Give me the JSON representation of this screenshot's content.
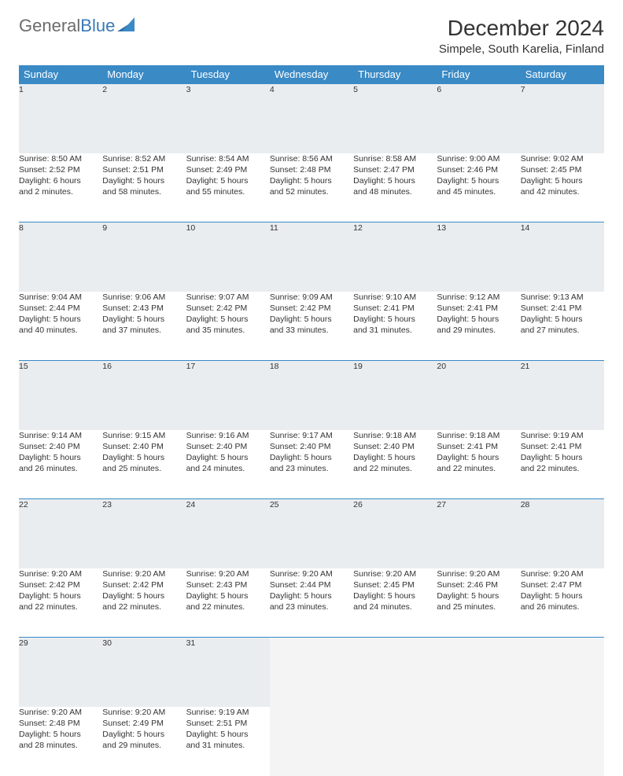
{
  "logo": {
    "part1": "General",
    "part2": "Blue"
  },
  "header": {
    "month_title": "December 2024",
    "location": "Simpele, South Karelia, Finland"
  },
  "colors": {
    "header_bg": "#3a8ac6",
    "header_text": "#ffffff",
    "row_divider": "#3a8ac6",
    "daynum_bg": "#e9edf0",
    "body_text": "#333333",
    "logo_gray": "#6c6c6c",
    "logo_blue": "#3a7ab8"
  },
  "typography": {
    "title_fontsize": 28,
    "location_fontsize": 15,
    "th_fontsize": 13,
    "cell_fontsize": 10.5
  },
  "calendar": {
    "type": "calendar-table",
    "columns": [
      "Sunday",
      "Monday",
      "Tuesday",
      "Wednesday",
      "Thursday",
      "Friday",
      "Saturday"
    ],
    "weeks": [
      [
        {
          "day": "1",
          "sunrise": "Sunrise: 8:50 AM",
          "sunset": "Sunset: 2:52 PM",
          "daylight1": "Daylight: 6 hours",
          "daylight2": "and 2 minutes."
        },
        {
          "day": "2",
          "sunrise": "Sunrise: 8:52 AM",
          "sunset": "Sunset: 2:51 PM",
          "daylight1": "Daylight: 5 hours",
          "daylight2": "and 58 minutes."
        },
        {
          "day": "3",
          "sunrise": "Sunrise: 8:54 AM",
          "sunset": "Sunset: 2:49 PM",
          "daylight1": "Daylight: 5 hours",
          "daylight2": "and 55 minutes."
        },
        {
          "day": "4",
          "sunrise": "Sunrise: 8:56 AM",
          "sunset": "Sunset: 2:48 PM",
          "daylight1": "Daylight: 5 hours",
          "daylight2": "and 52 minutes."
        },
        {
          "day": "5",
          "sunrise": "Sunrise: 8:58 AM",
          "sunset": "Sunset: 2:47 PM",
          "daylight1": "Daylight: 5 hours",
          "daylight2": "and 48 minutes."
        },
        {
          "day": "6",
          "sunrise": "Sunrise: 9:00 AM",
          "sunset": "Sunset: 2:46 PM",
          "daylight1": "Daylight: 5 hours",
          "daylight2": "and 45 minutes."
        },
        {
          "day": "7",
          "sunrise": "Sunrise: 9:02 AM",
          "sunset": "Sunset: 2:45 PM",
          "daylight1": "Daylight: 5 hours",
          "daylight2": "and 42 minutes."
        }
      ],
      [
        {
          "day": "8",
          "sunrise": "Sunrise: 9:04 AM",
          "sunset": "Sunset: 2:44 PM",
          "daylight1": "Daylight: 5 hours",
          "daylight2": "and 40 minutes."
        },
        {
          "day": "9",
          "sunrise": "Sunrise: 9:06 AM",
          "sunset": "Sunset: 2:43 PM",
          "daylight1": "Daylight: 5 hours",
          "daylight2": "and 37 minutes."
        },
        {
          "day": "10",
          "sunrise": "Sunrise: 9:07 AM",
          "sunset": "Sunset: 2:42 PM",
          "daylight1": "Daylight: 5 hours",
          "daylight2": "and 35 minutes."
        },
        {
          "day": "11",
          "sunrise": "Sunrise: 9:09 AM",
          "sunset": "Sunset: 2:42 PM",
          "daylight1": "Daylight: 5 hours",
          "daylight2": "and 33 minutes."
        },
        {
          "day": "12",
          "sunrise": "Sunrise: 9:10 AM",
          "sunset": "Sunset: 2:41 PM",
          "daylight1": "Daylight: 5 hours",
          "daylight2": "and 31 minutes."
        },
        {
          "day": "13",
          "sunrise": "Sunrise: 9:12 AM",
          "sunset": "Sunset: 2:41 PM",
          "daylight1": "Daylight: 5 hours",
          "daylight2": "and 29 minutes."
        },
        {
          "day": "14",
          "sunrise": "Sunrise: 9:13 AM",
          "sunset": "Sunset: 2:41 PM",
          "daylight1": "Daylight: 5 hours",
          "daylight2": "and 27 minutes."
        }
      ],
      [
        {
          "day": "15",
          "sunrise": "Sunrise: 9:14 AM",
          "sunset": "Sunset: 2:40 PM",
          "daylight1": "Daylight: 5 hours",
          "daylight2": "and 26 minutes."
        },
        {
          "day": "16",
          "sunrise": "Sunrise: 9:15 AM",
          "sunset": "Sunset: 2:40 PM",
          "daylight1": "Daylight: 5 hours",
          "daylight2": "and 25 minutes."
        },
        {
          "day": "17",
          "sunrise": "Sunrise: 9:16 AM",
          "sunset": "Sunset: 2:40 PM",
          "daylight1": "Daylight: 5 hours",
          "daylight2": "and 24 minutes."
        },
        {
          "day": "18",
          "sunrise": "Sunrise: 9:17 AM",
          "sunset": "Sunset: 2:40 PM",
          "daylight1": "Daylight: 5 hours",
          "daylight2": "and 23 minutes."
        },
        {
          "day": "19",
          "sunrise": "Sunrise: 9:18 AM",
          "sunset": "Sunset: 2:40 PM",
          "daylight1": "Daylight: 5 hours",
          "daylight2": "and 22 minutes."
        },
        {
          "day": "20",
          "sunrise": "Sunrise: 9:18 AM",
          "sunset": "Sunset: 2:41 PM",
          "daylight1": "Daylight: 5 hours",
          "daylight2": "and 22 minutes."
        },
        {
          "day": "21",
          "sunrise": "Sunrise: 9:19 AM",
          "sunset": "Sunset: 2:41 PM",
          "daylight1": "Daylight: 5 hours",
          "daylight2": "and 22 minutes."
        }
      ],
      [
        {
          "day": "22",
          "sunrise": "Sunrise: 9:20 AM",
          "sunset": "Sunset: 2:42 PM",
          "daylight1": "Daylight: 5 hours",
          "daylight2": "and 22 minutes."
        },
        {
          "day": "23",
          "sunrise": "Sunrise: 9:20 AM",
          "sunset": "Sunset: 2:42 PM",
          "daylight1": "Daylight: 5 hours",
          "daylight2": "and 22 minutes."
        },
        {
          "day": "24",
          "sunrise": "Sunrise: 9:20 AM",
          "sunset": "Sunset: 2:43 PM",
          "daylight1": "Daylight: 5 hours",
          "daylight2": "and 22 minutes."
        },
        {
          "day": "25",
          "sunrise": "Sunrise: 9:20 AM",
          "sunset": "Sunset: 2:44 PM",
          "daylight1": "Daylight: 5 hours",
          "daylight2": "and 23 minutes."
        },
        {
          "day": "26",
          "sunrise": "Sunrise: 9:20 AM",
          "sunset": "Sunset: 2:45 PM",
          "daylight1": "Daylight: 5 hours",
          "daylight2": "and 24 minutes."
        },
        {
          "day": "27",
          "sunrise": "Sunrise: 9:20 AM",
          "sunset": "Sunset: 2:46 PM",
          "daylight1": "Daylight: 5 hours",
          "daylight2": "and 25 minutes."
        },
        {
          "day": "28",
          "sunrise": "Sunrise: 9:20 AM",
          "sunset": "Sunset: 2:47 PM",
          "daylight1": "Daylight: 5 hours",
          "daylight2": "and 26 minutes."
        }
      ],
      [
        {
          "day": "29",
          "sunrise": "Sunrise: 9:20 AM",
          "sunset": "Sunset: 2:48 PM",
          "daylight1": "Daylight: 5 hours",
          "daylight2": "and 28 minutes."
        },
        {
          "day": "30",
          "sunrise": "Sunrise: 9:20 AM",
          "sunset": "Sunset: 2:49 PM",
          "daylight1": "Daylight: 5 hours",
          "daylight2": "and 29 minutes."
        },
        {
          "day": "31",
          "sunrise": "Sunrise: 9:19 AM",
          "sunset": "Sunset: 2:51 PM",
          "daylight1": "Daylight: 5 hours",
          "daylight2": "and 31 minutes."
        },
        null,
        null,
        null,
        null
      ]
    ]
  }
}
